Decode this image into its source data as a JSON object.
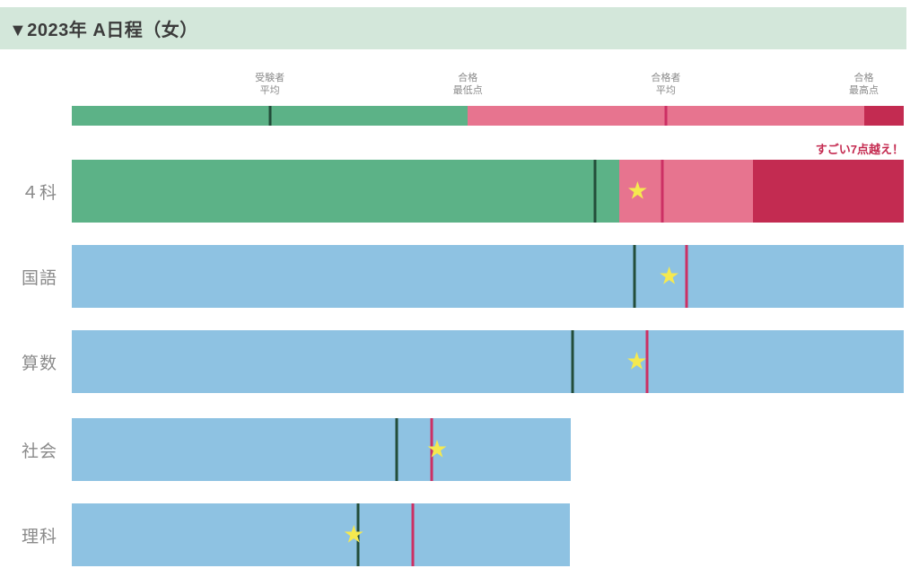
{
  "header": {
    "title": "▼2023年 A日程（女）"
  },
  "colors": {
    "header_bg": "#d3e7da",
    "green": "#5cb287",
    "pink": "#e7748f",
    "crimson": "#c32b51",
    "blue": "#8ec2e2",
    "line_green": "#234d3a",
    "line_red": "#cc3064",
    "star": "#f5e94f",
    "label_gray": "#8a8a8a",
    "annotation_red": "#c4294f",
    "title_color": "#3b3b3b"
  },
  "chart_data": {
    "type": "bar",
    "orientation": "horizontal",
    "title": "▼2023年 A日程（女）",
    "axis_note": "no numeric axis shown; marker positions expressed as % of full bar scale",
    "legend": {
      "markers": [
        {
          "name": "受験者平均",
          "label_lines": [
            "受験者",
            "平均"
          ],
          "pos_pct": 23.8,
          "marker": "dark-green-line"
        },
        {
          "name": "合格最低点",
          "label_lines": [
            "合格",
            "最低点"
          ],
          "pos_pct": 47.6,
          "marker": "green-to-pink-boundary"
        },
        {
          "name": "合格者平均",
          "label_lines": [
            "合格者",
            "平均"
          ],
          "pos_pct": 71.4,
          "marker": "red-line"
        },
        {
          "name": "合格最高点",
          "label_lines": [
            "合格",
            "最高点"
          ],
          "pos_pct": 95.2,
          "marker": "pink-to-crimson-boundary"
        }
      ],
      "segments": [
        {
          "color_key": "green",
          "from_pct": 0,
          "to_pct": 47.6
        },
        {
          "color_key": "pink",
          "from_pct": 47.6,
          "to_pct": 95.2
        },
        {
          "color_key": "crimson",
          "from_pct": 95.2,
          "to_pct": 100
        }
      ],
      "lines": [
        {
          "color_key": "line_green",
          "pos_pct": 23.8,
          "meaning": "受験者平均"
        },
        {
          "color_key": "line_red",
          "pos_pct": 71.4,
          "meaning": "合格者平均"
        }
      ]
    },
    "rows": [
      {
        "key": "four-subjects",
        "label": "４科",
        "segments": [
          {
            "color_key": "green",
            "from_pct": 0,
            "to_pct": 65.8
          },
          {
            "color_key": "pink",
            "from_pct": 65.8,
            "to_pct": 81.9
          },
          {
            "color_key": "crimson",
            "from_pct": 81.9,
            "to_pct": 100
          }
        ],
        "lines": [
          {
            "color_key": "line_green",
            "pos_pct": 62.9,
            "meaning": "受験者平均"
          },
          {
            "color_key": "line_red",
            "pos_pct": 71.0,
            "meaning": "合格者平均"
          }
        ],
        "star_pct": 68.0,
        "annotation": "すごい7点越え！"
      },
      {
        "key": "japanese",
        "label": "国語",
        "segments": [
          {
            "color_key": "blue",
            "from_pct": 0,
            "to_pct": 100
          }
        ],
        "lines": [
          {
            "color_key": "line_green",
            "pos_pct": 67.6,
            "meaning": "受験者平均"
          },
          {
            "color_key": "line_red",
            "pos_pct": 73.9,
            "meaning": "合格者平均"
          }
        ],
        "star_pct": 71.8
      },
      {
        "key": "math",
        "label": "算数",
        "segments": [
          {
            "color_key": "blue",
            "from_pct": 0,
            "to_pct": 100
          }
        ],
        "lines": [
          {
            "color_key": "line_green",
            "pos_pct": 60.2,
            "meaning": "受験者平均"
          },
          {
            "color_key": "line_red",
            "pos_pct": 69.2,
            "meaning": "合格者平均"
          }
        ],
        "star_pct": 67.9
      },
      {
        "key": "social-studies",
        "label": "社会",
        "segments": [
          {
            "color_key": "blue",
            "from_pct": 0,
            "to_pct": 60.0
          }
        ],
        "lines": [
          {
            "color_key": "line_green",
            "pos_pct": 39.1,
            "meaning": "受験者平均"
          },
          {
            "color_key": "line_red",
            "pos_pct": 43.3,
            "meaning": "合格者平均"
          }
        ],
        "star_pct": 43.9
      },
      {
        "key": "science",
        "label": "理科",
        "segments": [
          {
            "color_key": "blue",
            "from_pct": 0,
            "to_pct": 59.9
          }
        ],
        "lines": [
          {
            "color_key": "line_green",
            "pos_pct": 34.4,
            "meaning": "受験者平均"
          },
          {
            "color_key": "line_red",
            "pos_pct": 41.0,
            "meaning": "合格者平均"
          }
        ],
        "star_pct": 33.9
      }
    ]
  }
}
